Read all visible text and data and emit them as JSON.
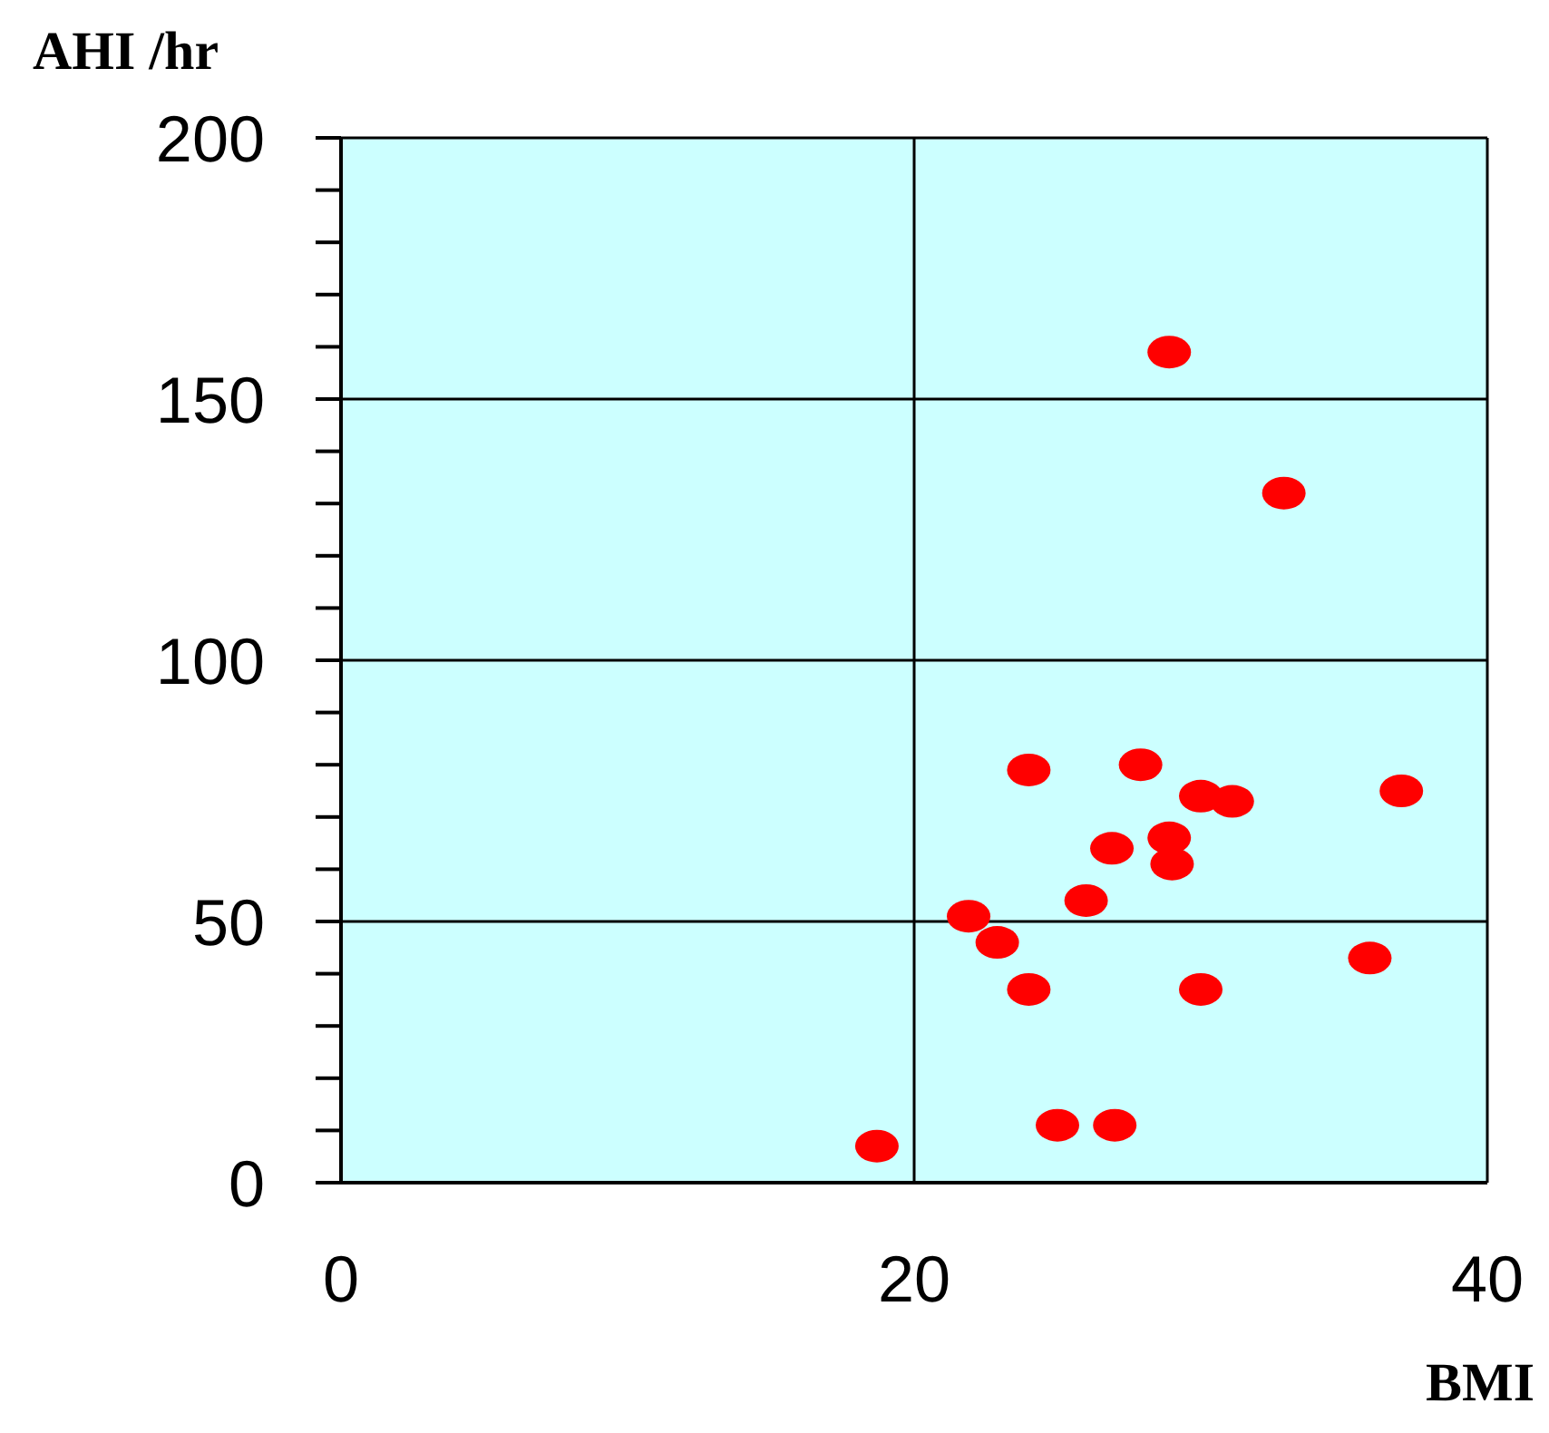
{
  "chart_data": {
    "type": "scatter",
    "xlabel": "BMI",
    "ylabel": "AHI /hr",
    "x": [
      28.9,
      32.9,
      24.0,
      27.9,
      30.0,
      31.1,
      37.0,
      28.9,
      26.9,
      29.0,
      26.0,
      21.9,
      22.9,
      35.9,
      24.0,
      30.0,
      25.0,
      27.0,
      18.7
    ],
    "values": [
      159,
      132,
      79,
      80,
      74,
      73,
      75,
      66,
      64,
      61,
      54,
      51,
      46,
      43,
      37,
      37,
      11,
      11,
      7
    ],
    "color": "#ff0000",
    "marker": "circle",
    "xlim": [
      0,
      40
    ],
    "xticks": [
      0,
      20,
      40
    ],
    "ylim": [
      0,
      200
    ],
    "yticks": [
      0,
      {
        "value": 10,
        "label": null
      },
      {
        "value": 20,
        "label": null
      },
      {
        "value": 30,
        "label": null
      },
      {
        "value": 40,
        "label": null
      },
      50,
      {
        "value": 60,
        "label": null
      },
      {
        "value": 70,
        "label": null
      },
      {
        "value": 80,
        "label": null
      },
      {
        "value": 90,
        "label": null
      },
      100,
      {
        "value": 110,
        "label": null
      },
      {
        "value": 120,
        "label": null
      },
      {
        "value": 130,
        "label": null
      },
      {
        "value": 140,
        "label": null
      },
      150,
      {
        "value": 160,
        "label": null
      },
      {
        "value": 170,
        "label": null
      },
      {
        "value": 180,
        "label": null
      },
      {
        "value": 190,
        "label": null
      },
      200
    ],
    "grid": true
  }
}
